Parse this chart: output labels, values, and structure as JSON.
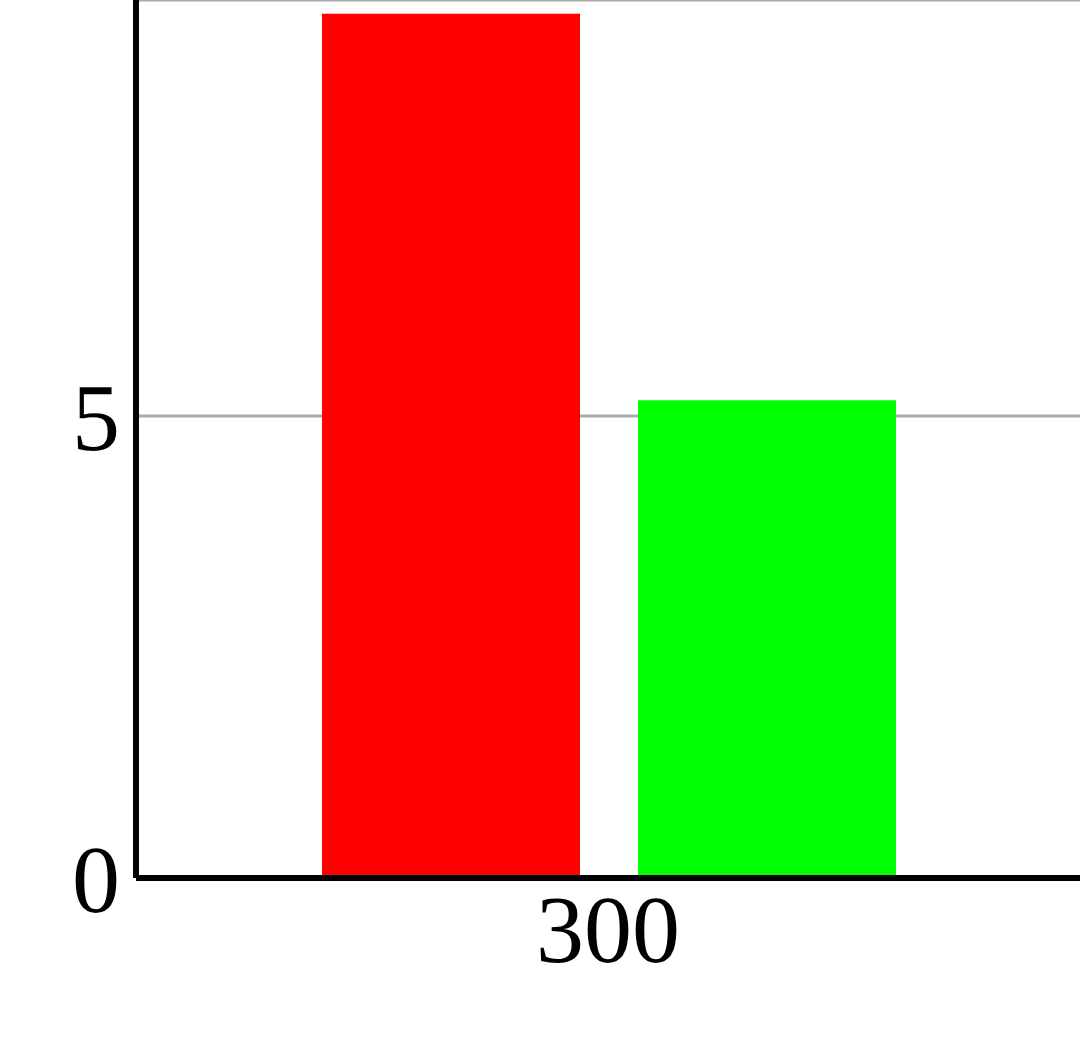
{
  "chart_data": {
    "type": "bar",
    "categories": [
      "300"
    ],
    "series": [
      {
        "color": "#ff0000",
        "values": [
          9.35
        ]
      },
      {
        "color": "#00ff00",
        "values": [
          5.17
        ]
      }
    ],
    "ylim": [
      0,
      9.5
    ],
    "yticks": [
      0,
      5
    ],
    "grid": "y"
  }
}
